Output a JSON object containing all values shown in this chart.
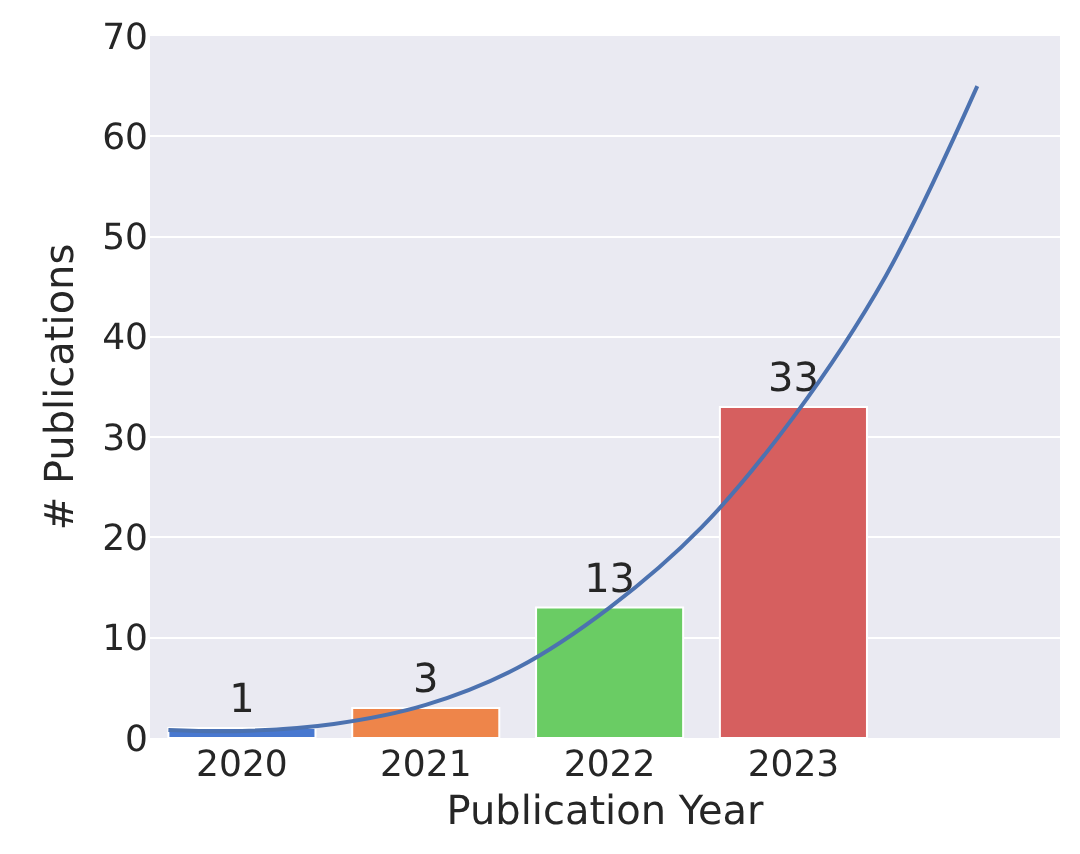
{
  "chart_data": {
    "type": "bar",
    "xlabel": "Publication Year",
    "ylabel": "# Publications",
    "x": [
      2020,
      2021,
      2022,
      2023
    ],
    "series": [
      {
        "colors": [
          "#4878d0",
          "#ee854a",
          "#6acc64",
          "#d65f5f"
        ],
        "values": [
          1,
          3,
          13,
          33
        ],
        "value_labels": [
          "1",
          "3",
          "13",
          "33"
        ]
      },
      {
        "type": "line",
        "color": "#4c72b0",
        "x": [
          2019.6,
          2020,
          2020.5,
          2021,
          2021.5,
          2022,
          2022.5,
          2023,
          2023.5,
          2024
        ],
        "values": [
          0.8,
          0.7,
          1.4,
          3.3,
          7,
          13,
          21,
          32,
          46,
          65
        ]
      }
    ],
    "xlim": [
      2019.5,
      2024.45
    ],
    "xticks": [
      2020,
      2021,
      2022,
      2023
    ],
    "ylim": [
      0,
      70
    ],
    "yticks": [
      0,
      10,
      20,
      30,
      40,
      50,
      60,
      70
    ],
    "grid": "y"
  }
}
